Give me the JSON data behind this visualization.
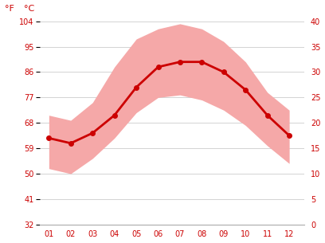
{
  "months": [
    1,
    2,
    3,
    4,
    5,
    6,
    7,
    8,
    9,
    10,
    11,
    12
  ],
  "month_labels": [
    "01",
    "02",
    "03",
    "04",
    "05",
    "06",
    "07",
    "08",
    "09",
    "10",
    "11",
    "12"
  ],
  "avg_c": [
    17.0,
    16.0,
    18.0,
    21.5,
    27.0,
    31.0,
    32.0,
    32.0,
    30.0,
    26.5,
    21.5,
    17.5
  ],
  "max_c": [
    21.5,
    20.5,
    24.0,
    31.0,
    36.5,
    38.5,
    39.5,
    38.5,
    36.0,
    32.0,
    26.0,
    22.5
  ],
  "min_c": [
    11.0,
    10.0,
    13.0,
    17.0,
    22.0,
    25.0,
    25.5,
    24.5,
    22.5,
    19.5,
    15.5,
    12.0
  ],
  "ylim_c": [
    0,
    40
  ],
  "yticks_c": [
    0,
    5,
    10,
    15,
    20,
    25,
    30,
    35,
    40
  ],
  "yticks_f": [
    32,
    41,
    50,
    59,
    68,
    77,
    86,
    95,
    104
  ],
  "band_color": "#f5a8a8",
  "line_color": "#cc0000",
  "line_width": 2.0,
  "marker_size": 4,
  "grid_color": "#cccccc",
  "tick_color": "#cc0000",
  "bg_color": "#ffffff",
  "figsize": [
    4.08,
    3.05
  ],
  "dpi": 100
}
